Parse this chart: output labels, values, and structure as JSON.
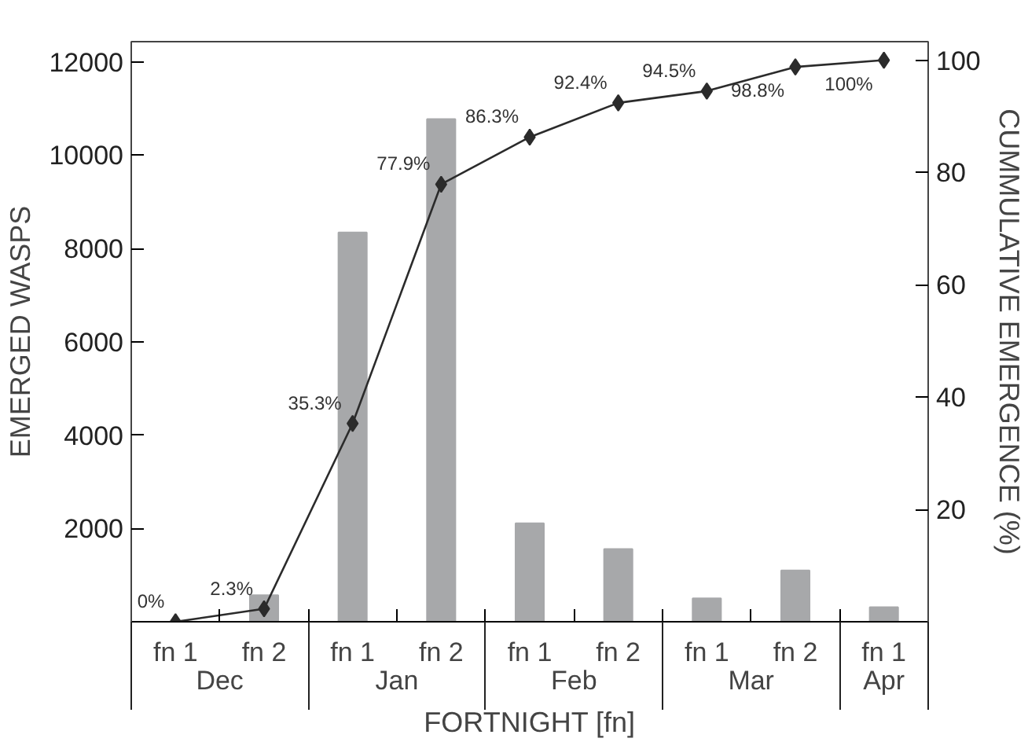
{
  "chart_data": {
    "type": "bar",
    "xlabel": "FORTNIGHT [fn]",
    "ylabel": "EMERGED WASPS",
    "y2label": "CUMMULATIVE EMERGENCE (%)",
    "categories": [
      "fn 1",
      "fn 2",
      "fn 1",
      "fn 2",
      "fn 1",
      "fn 2",
      "fn 1",
      "fn 2",
      "fn 1"
    ],
    "series": [
      {
        "color": "#a7a8aa",
        "values": [
          0,
          570,
          8340,
          10770,
          2110,
          1560,
          500,
          1100,
          310
        ]
      },
      {
        "type": "line",
        "axis": "y2",
        "color": "#2b2b2b",
        "marker": "diamond",
        "line_style": "solid",
        "values": [
          0,
          2.3,
          35.3,
          77.9,
          86.3,
          92.4,
          94.5,
          98.8,
          100
        ],
        "value_labels": [
          "0%",
          "2.3%",
          "35.3%",
          "77.9%",
          "86.3%",
          "92.4%",
          "94.5%",
          "98.8%",
          "100%"
        ]
      }
    ],
    "annotations": [
      "Dec",
      "Jan",
      "Feb",
      "Mar",
      "Apr"
    ],
    "ylim": [
      0,
      12430
    ],
    "yticks": [
      2000,
      4000,
      6000,
      8000,
      10000,
      12000
    ],
    "y2lim": [
      0,
      103.3
    ],
    "y2ticks": [
      20,
      40,
      60,
      80,
      100
    ],
    "grid": false
  }
}
